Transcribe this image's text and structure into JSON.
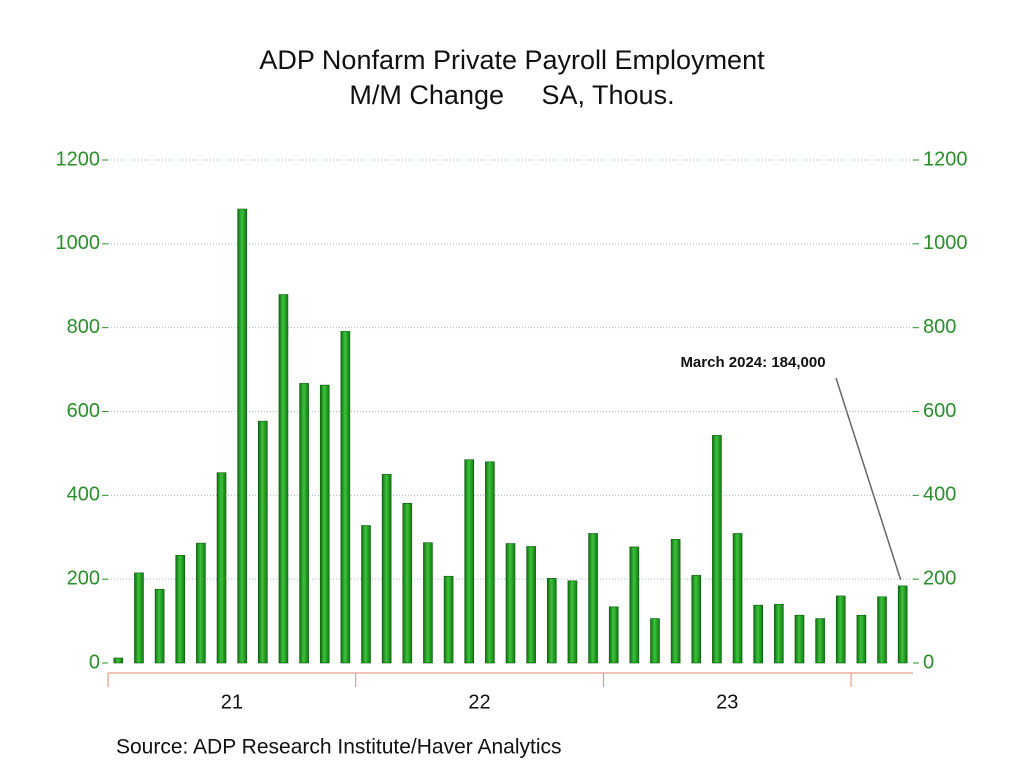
{
  "chart_data": {
    "type": "bar",
    "title": "ADP Nonfarm Private Payroll Employment",
    "subtitle": "M/M Change     SA, Thous.",
    "source": "Source:  ADP Research Institute/Haver Analytics",
    "annotation": "March 2024: 184,000",
    "categories": [
      null,
      null,
      null,
      null,
      null,
      null,
      null,
      null,
      null,
      null,
      null,
      null,
      null,
      null,
      null,
      null,
      null,
      null,
      null,
      null,
      null,
      null,
      null,
      null,
      null,
      null,
      null,
      null,
      null,
      null,
      null,
      null,
      null,
      null,
      null,
      null,
      null,
      null,
      null
    ],
    "x_group_labels": [
      "21",
      "22",
      "23"
    ],
    "values": [
      12,
      215,
      176,
      257,
      286,
      454,
      1083,
      577,
      879,
      667,
      663,
      791,
      328,
      450,
      381,
      287,
      207,
      485,
      480,
      285,
      278,
      202,
      196,
      309,
      134,
      277,
      106,
      295,
      209,
      543,
      309,
      138,
      140,
      114,
      106,
      160,
      114,
      158,
      184
    ],
    "color": "#1e9e1e",
    "ylim": [
      0,
      1200
    ],
    "yticks": [
      0,
      200,
      400,
      600,
      800,
      1000,
      1200
    ],
    "grid": true
  }
}
